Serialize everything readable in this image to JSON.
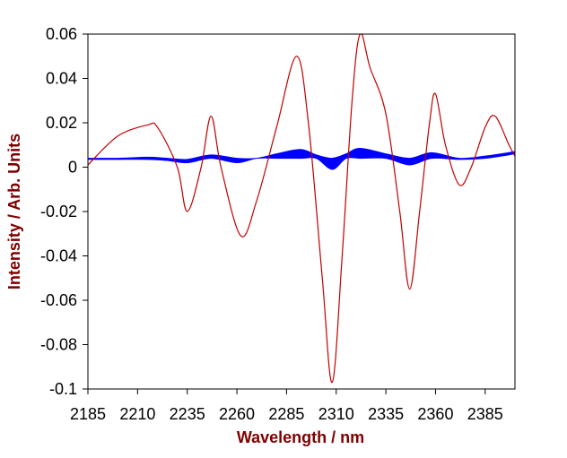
{
  "chart_data": {
    "type": "line",
    "xlabel": "Wavelength / nm",
    "ylabel": "Intensity / Arb. Units",
    "xlim": [
      2185,
      2400
    ],
    "ylim": [
      -0.1,
      0.06
    ],
    "xticks": [
      2185,
      2210,
      2235,
      2260,
      2285,
      2310,
      2335,
      2360,
      2385
    ],
    "yticks": [
      0.06,
      0.04,
      0.02,
      0,
      -0.02,
      -0.04,
      -0.06,
      -0.08,
      -0.1
    ],
    "series": [
      {
        "color": "#c00000",
        "x": [
          2185,
          2200,
          2215,
          2220,
          2230,
          2235,
          2242,
          2247,
          2252,
          2262,
          2270,
          2280,
          2290,
          2296,
          2303,
          2308,
          2313,
          2318,
          2322,
          2327,
          2335,
          2342,
          2347,
          2352,
          2357,
          2360,
          2365,
          2372,
          2378,
          2385,
          2390,
          2397,
          2400
        ],
        "values": [
          0.001,
          0.014,
          0.019,
          0.018,
          0.0,
          -0.02,
          0.0,
          0.023,
          0.0,
          -0.031,
          -0.015,
          0.018,
          0.05,
          0.02,
          -0.05,
          -0.097,
          -0.04,
          0.03,
          0.06,
          0.045,
          0.024,
          -0.02,
          -0.055,
          -0.02,
          0.02,
          0.033,
          0.01,
          -0.008,
          0.0,
          0.018,
          0.023,
          0.01,
          0.005
        ]
      }
    ],
    "band": {
      "color": "#0000ff",
      "x": [
        2185,
        2200,
        2215,
        2225,
        2235,
        2247,
        2260,
        2270,
        2280,
        2292,
        2300,
        2308,
        2315,
        2322,
        2335,
        2347,
        2358,
        2372,
        2385,
        2400
      ],
      "upper": [
        0.004,
        0.004,
        0.0045,
        0.004,
        0.0035,
        0.0055,
        0.004,
        0.004,
        0.006,
        0.008,
        0.0055,
        0.004,
        0.006,
        0.0085,
        0.006,
        0.004,
        0.0065,
        0.004,
        0.005,
        0.007
      ],
      "lower": [
        0.0035,
        0.0035,
        0.0035,
        0.003,
        0.002,
        0.004,
        0.002,
        0.004,
        0.004,
        0.004,
        0.004,
        -0.001,
        0.004,
        0.004,
        0.004,
        0.001,
        0.004,
        0.0035,
        0.004,
        0.006
      ]
    }
  }
}
